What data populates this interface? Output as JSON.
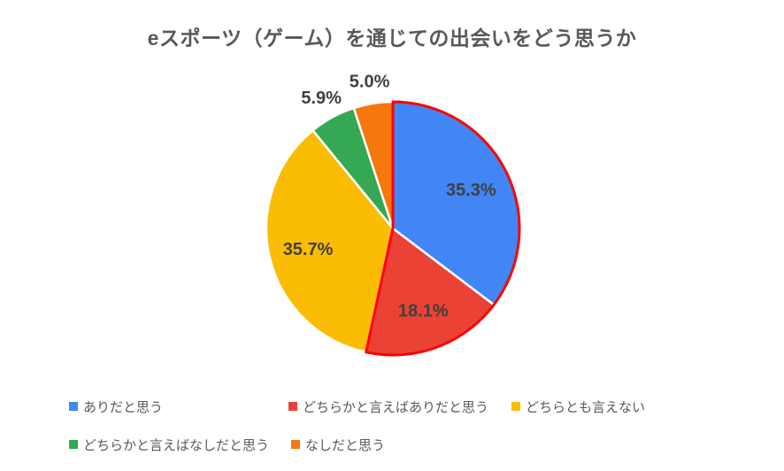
{
  "chart_data": {
    "type": "pie",
    "title": "eスポーツ（ゲーム）を通じての出会いをどう思うか",
    "categories": [
      "ありだと思う",
      "どちらかと言えばありだと思う",
      "どちらとも言えない",
      "どちらかと言えばなしだと思う",
      "なしだと思う"
    ],
    "values": [
      35.3,
      18.1,
      35.7,
      5.9,
      5.0
    ],
    "data_labels": [
      "35.3%",
      "18.1%",
      "35.7%",
      "5.9%",
      "5.0%"
    ],
    "colors": [
      "#4285F4",
      "#EA4335",
      "#FBBC04",
      "#34A853",
      "#F6770B"
    ],
    "start_angle_deg": 0,
    "direction": "clockwise",
    "slice_separator_color": "#FFFFFF",
    "label_color": "#404040",
    "title_color": "#595959",
    "legend_text_color": "#595959",
    "legend_position": "bottom",
    "highlight": {
      "slice_indexes": [
        0,
        1
      ],
      "outline_color": "#FF0000",
      "note": "red outline drawn around the union of the first two slices"
    }
  }
}
